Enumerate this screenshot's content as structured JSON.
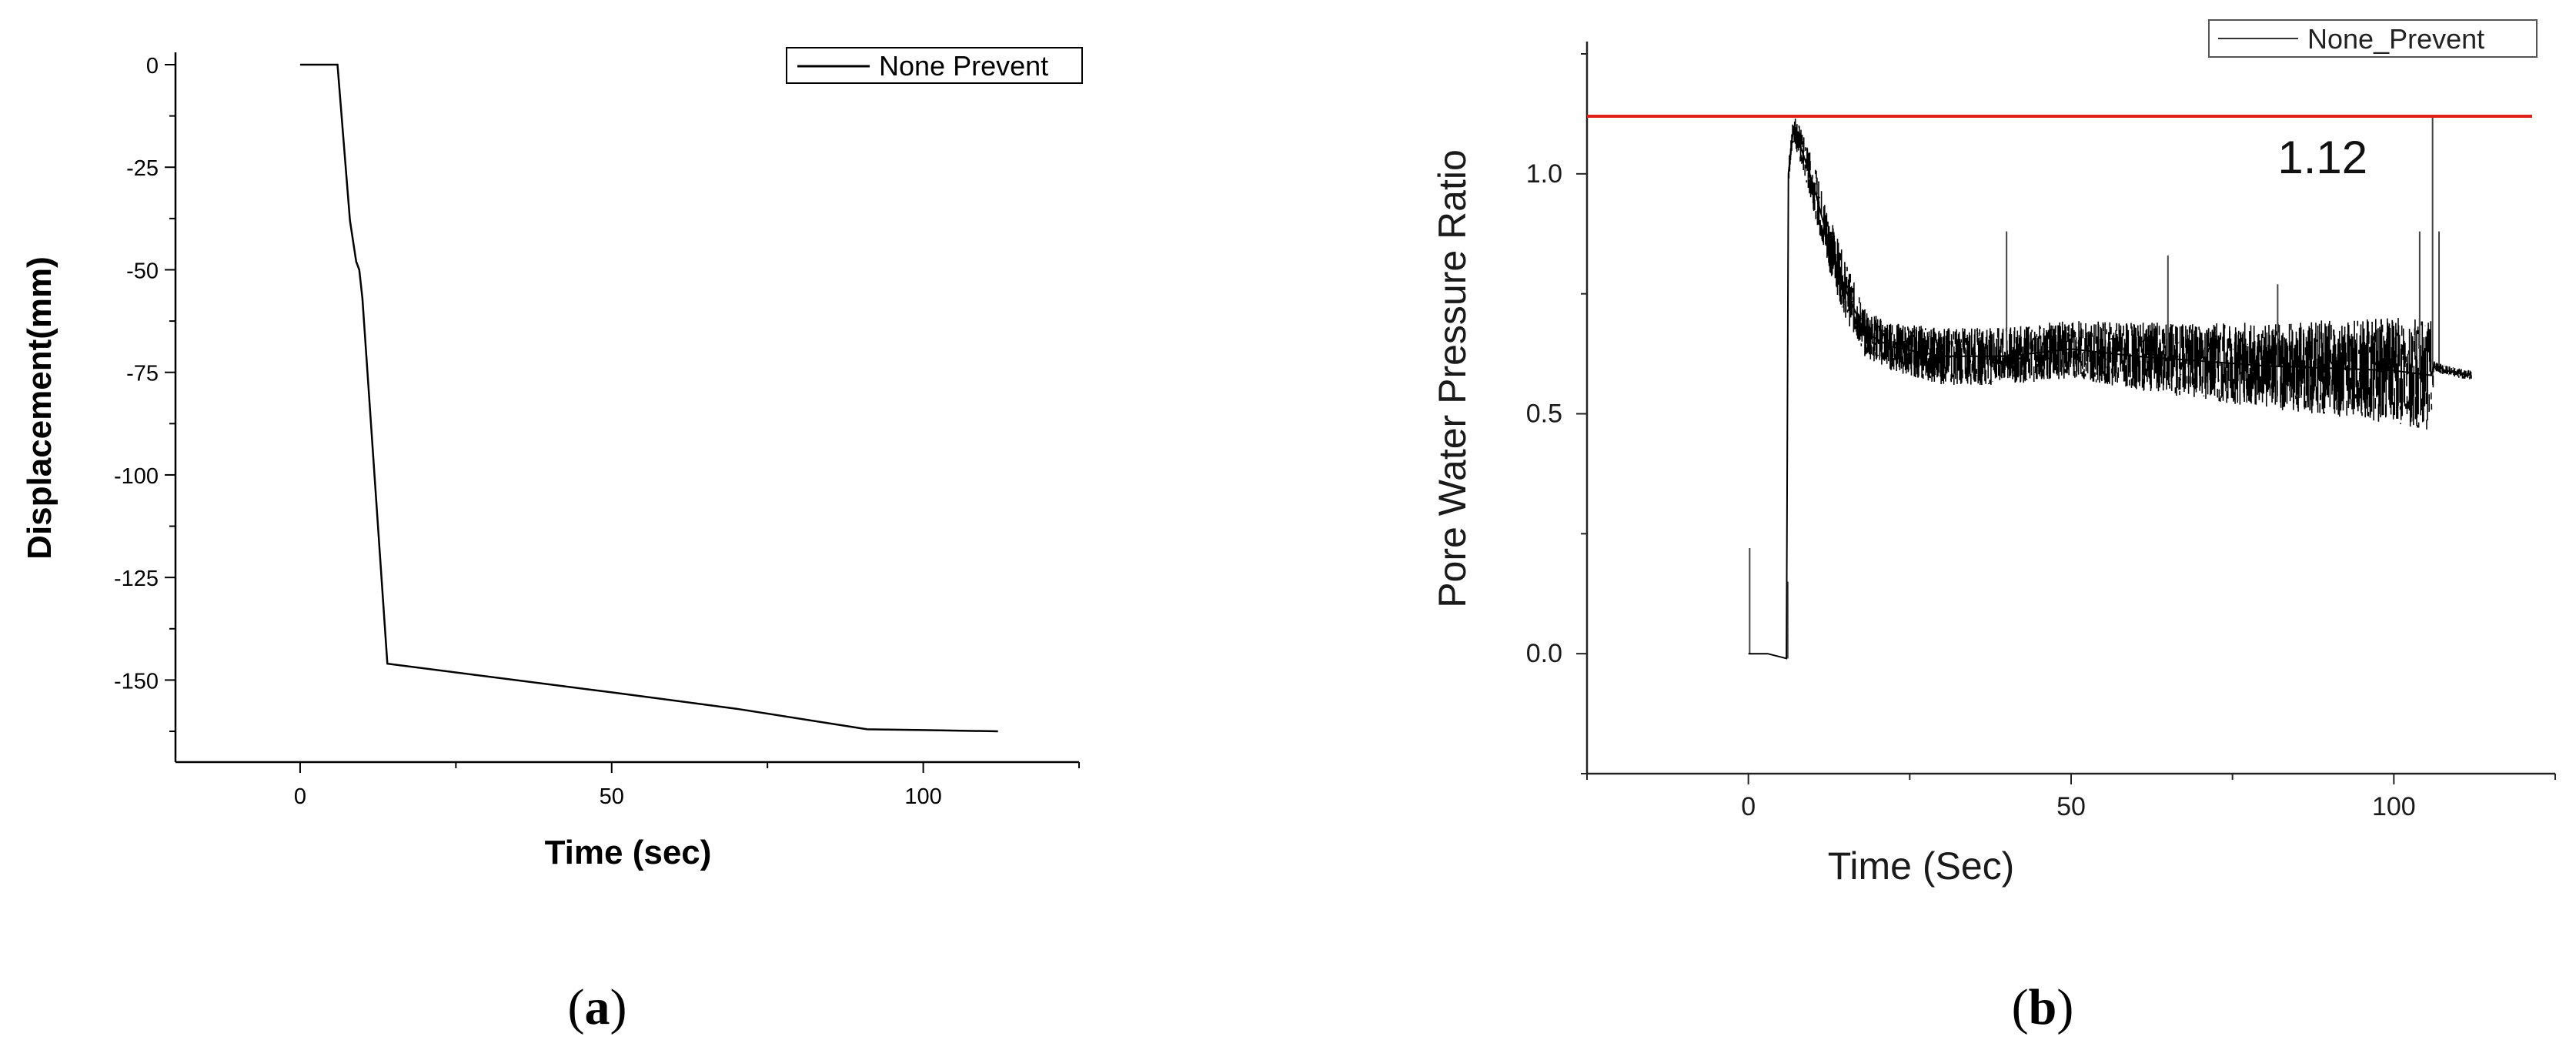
{
  "chart_data": [
    {
      "id": "a",
      "type": "line",
      "caption_letter": "a",
      "xlabel": "Time (sec)",
      "ylabel": "Displacement(mm)",
      "xlim": [
        -20,
        125
      ],
      "ylim": [
        -170,
        0
      ],
      "xticks": [
        0,
        50,
        100
      ],
      "yticks": [
        0,
        -25,
        -50,
        -75,
        -100,
        -125,
        -150
      ],
      "grid": false,
      "legend_position": "top-right",
      "series": [
        {
          "name": "None Prevent",
          "color": "#000000",
          "x": [
            0,
            6,
            8,
            9,
            9.5,
            10,
            14,
            50,
            70,
            91,
            100,
            112
          ],
          "y": [
            0,
            0,
            -38,
            -48,
            -50,
            -57,
            -146,
            -153,
            -157,
            -162,
            -162.2,
            -162.5
          ]
        }
      ]
    },
    {
      "id": "b",
      "type": "line",
      "caption_letter": "b",
      "xlabel": "Time (Sec)",
      "ylabel": "Pore Water Pressure Ratio",
      "xlim": [
        -25,
        125
      ],
      "ylim": [
        -0.25,
        1.25
      ],
      "xticks": [
        0,
        50,
        100
      ],
      "yticks": [
        0.0,
        0.5,
        1.0
      ],
      "grid": false,
      "legend_position": "top-right",
      "reference_line": {
        "y": 1.12,
        "label": "1.12",
        "color": "#e0201a"
      },
      "series": [
        {
          "name": "None_Prevent",
          "color": "#000000",
          "x": [
            0,
            3,
            5.9,
            6.2,
            7,
            8,
            10,
            12,
            15,
            18,
            22,
            30,
            40,
            50,
            60,
            70,
            80,
            90,
            100,
            105.8,
            106.2,
            108,
            112
          ],
          "y": [
            0.0,
            0.0,
            -0.01,
            1.0,
            1.1,
            1.06,
            0.98,
            0.88,
            0.76,
            0.67,
            0.64,
            0.62,
            0.62,
            0.635,
            0.62,
            0.61,
            0.6,
            0.595,
            0.59,
            0.58,
            0.6,
            0.59,
            0.58
          ],
          "band": [
            0,
            0,
            0,
            0.02,
            0.03,
            0.04,
            0.05,
            0.06,
            0.06,
            0.05,
            0.05,
            0.06,
            0.06,
            0.06,
            0.07,
            0.08,
            0.09,
            0.1,
            0.11,
            0.12,
            0.01,
            0.01,
            0.01
          ]
        }
      ]
    }
  ]
}
